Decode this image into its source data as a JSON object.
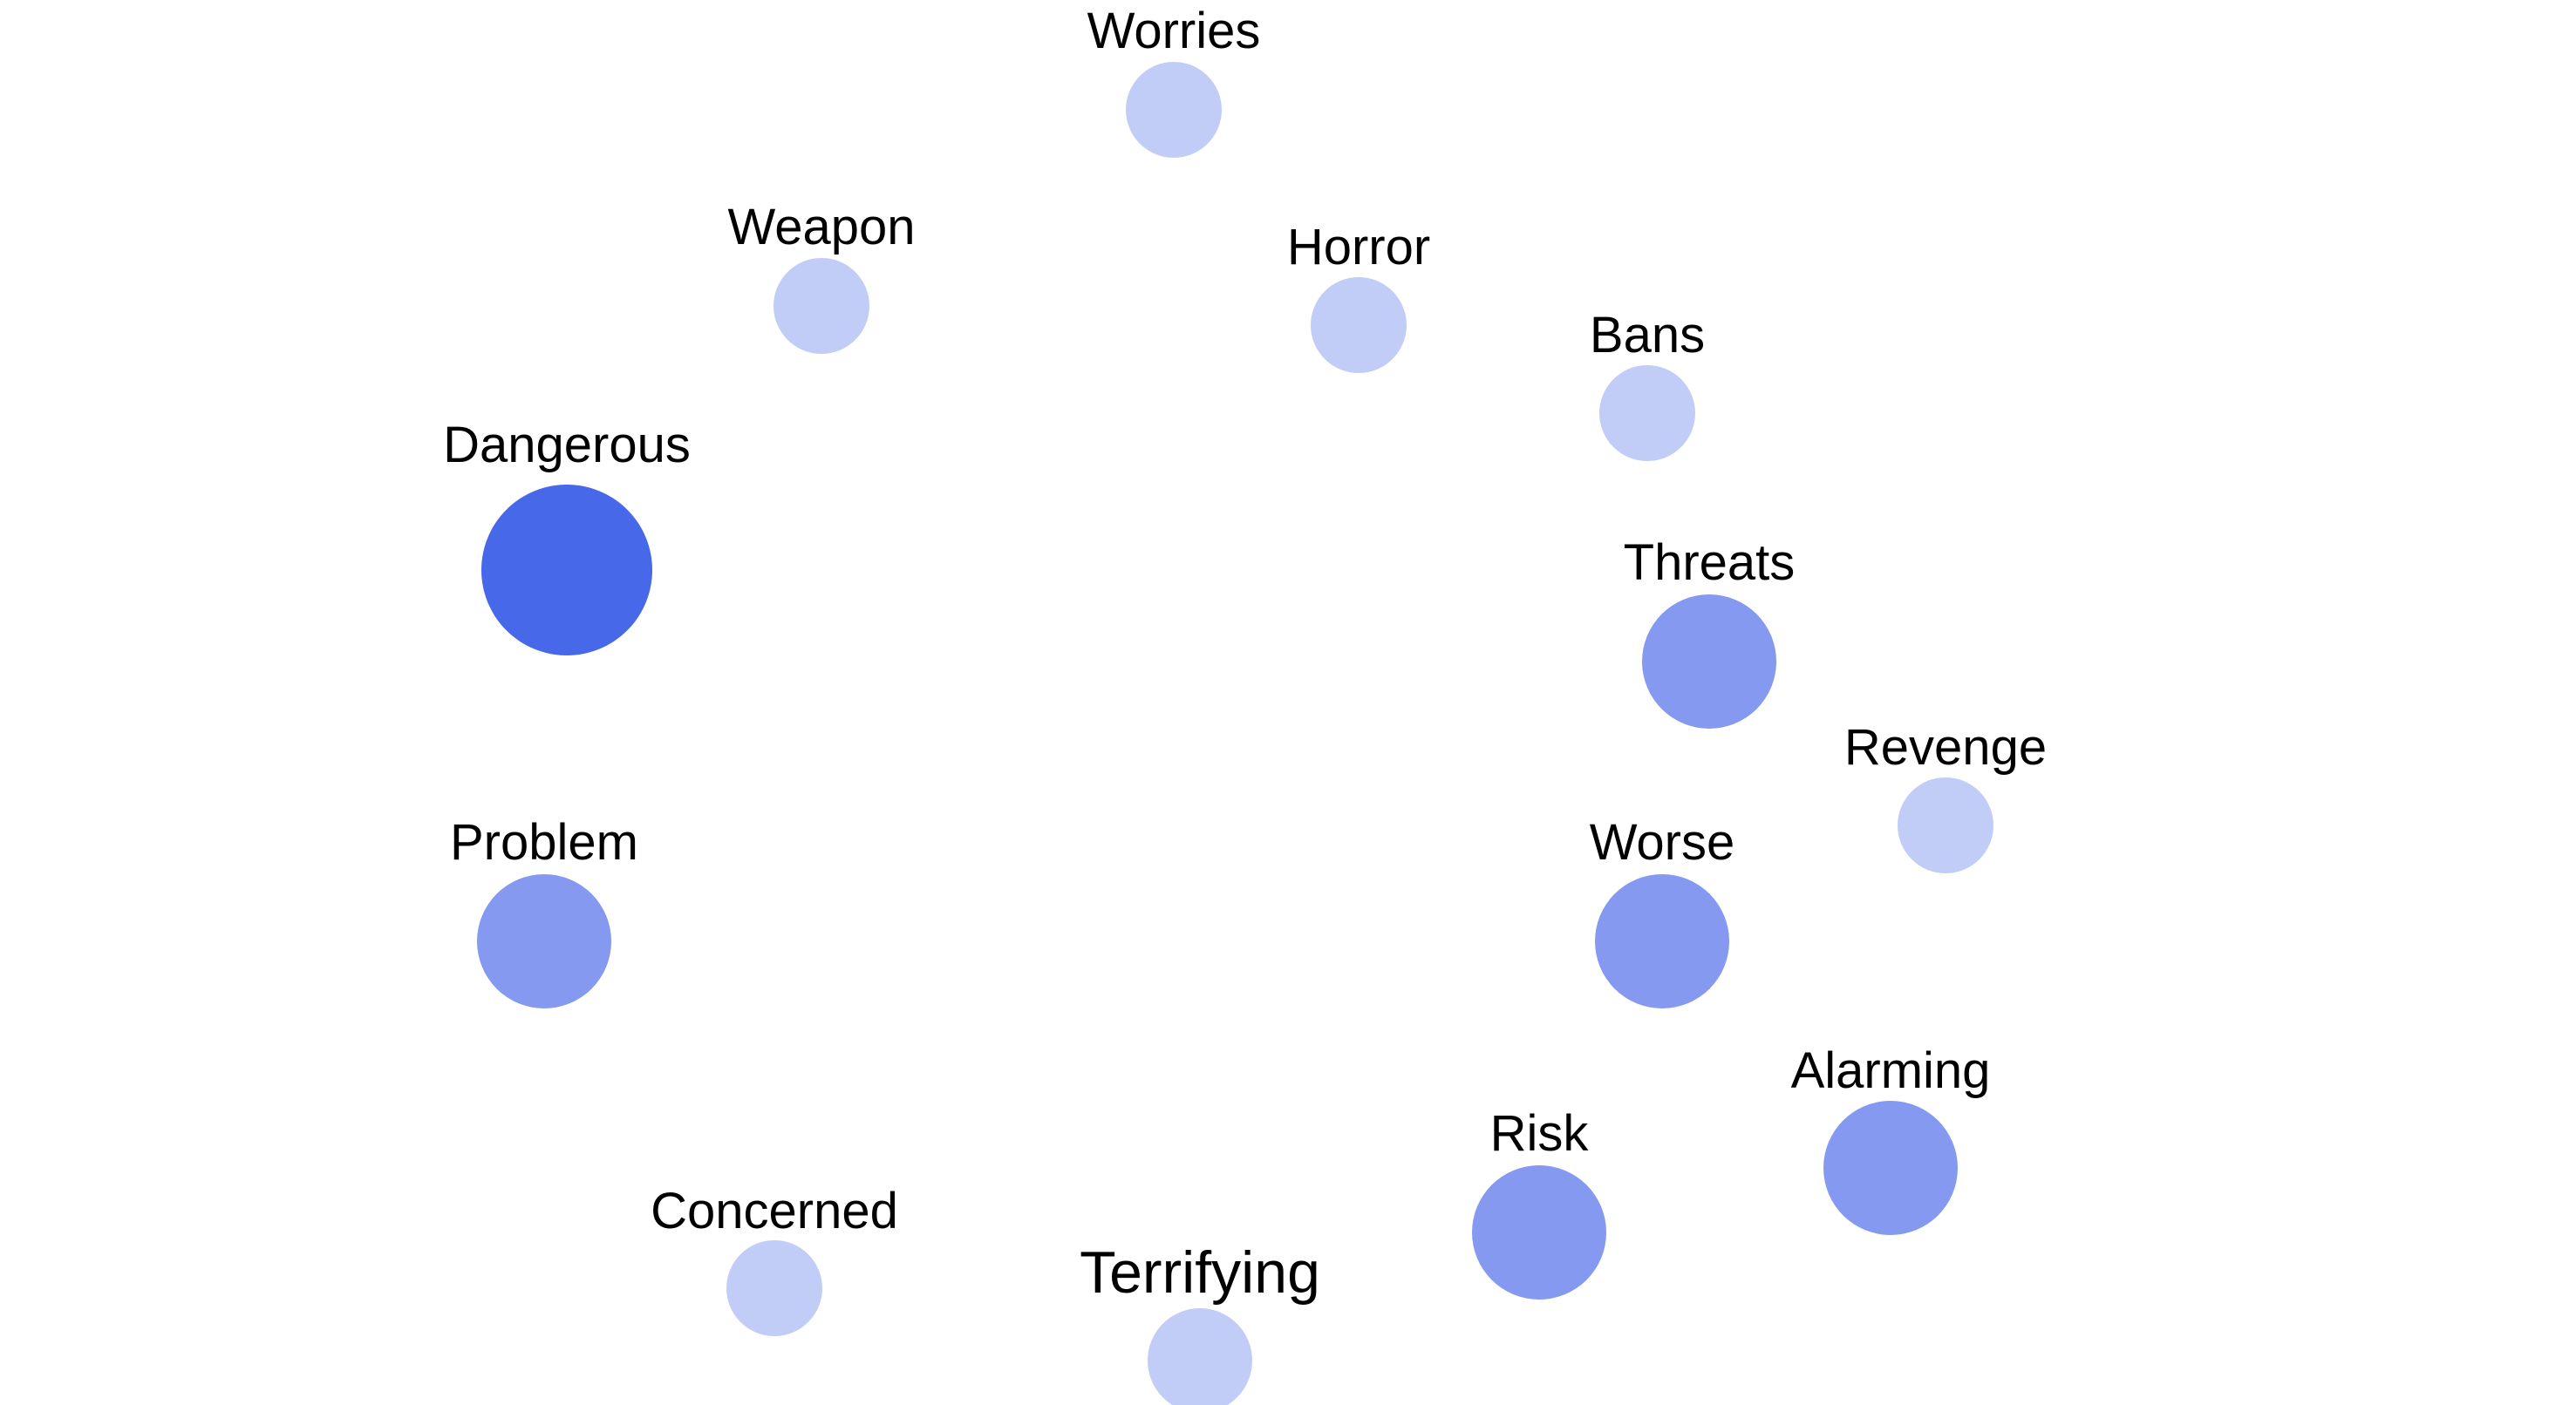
{
  "colors": {
    "background": "#ffffff",
    "text": "#000000",
    "level_1": "#c2cdf7",
    "level_2": "#8499ef",
    "level_3": "#4768e8"
  },
  "terms": [
    {
      "id": "worries",
      "label": "Worries",
      "level": 1
    },
    {
      "id": "weapon",
      "label": "Weapon",
      "level": 1
    },
    {
      "id": "horror",
      "label": "Horror",
      "level": 1
    },
    {
      "id": "bans",
      "label": "Bans",
      "level": 1
    },
    {
      "id": "dangerous",
      "label": "Dangerous",
      "level": 3
    },
    {
      "id": "threats",
      "label": "Threats",
      "level": 2
    },
    {
      "id": "revenge",
      "label": "Revenge",
      "level": 1
    },
    {
      "id": "problem",
      "label": "Problem",
      "level": 2
    },
    {
      "id": "worse",
      "label": "Worse",
      "level": 2
    },
    {
      "id": "alarming",
      "label": "Alarming",
      "level": 2
    },
    {
      "id": "risk",
      "label": "Risk",
      "level": 2
    },
    {
      "id": "concerned",
      "label": "Concerned",
      "level": 1
    },
    {
      "id": "terrifying",
      "label": "Terrifying",
      "level": 1
    }
  ]
}
